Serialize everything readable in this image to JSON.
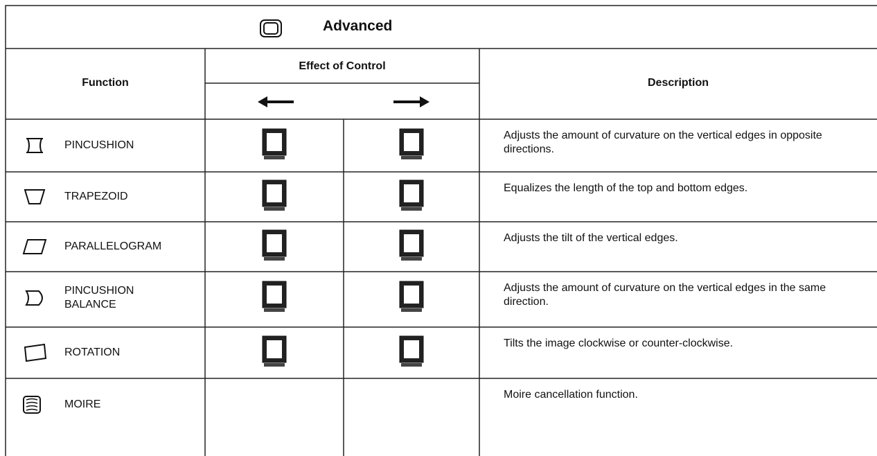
{
  "title": "Advanced",
  "headers": {
    "function": "Function",
    "effect": "Effect of Control",
    "description": "Description"
  },
  "rows": [
    {
      "function": "PINCUSHION",
      "description": "Adjusts the amount of curvature on the vertical edges in opposite directions."
    },
    {
      "function": "TRAPEZOID",
      "description": "Equalizes the length of the top and bottom edges."
    },
    {
      "function": "PARALLELOGRAM",
      "description": "Adjusts the tilt of the vertical edges."
    },
    {
      "function": "PINCUSHION BALANCE",
      "description": "Adjusts the amount of curvature on the vertical edges in the same direction."
    },
    {
      "function": "ROTATION",
      "description": "Tilts the image clockwise or counter-clockwise."
    },
    {
      "function": "MOIRE",
      "description": "Moire cancellation function."
    }
  ]
}
